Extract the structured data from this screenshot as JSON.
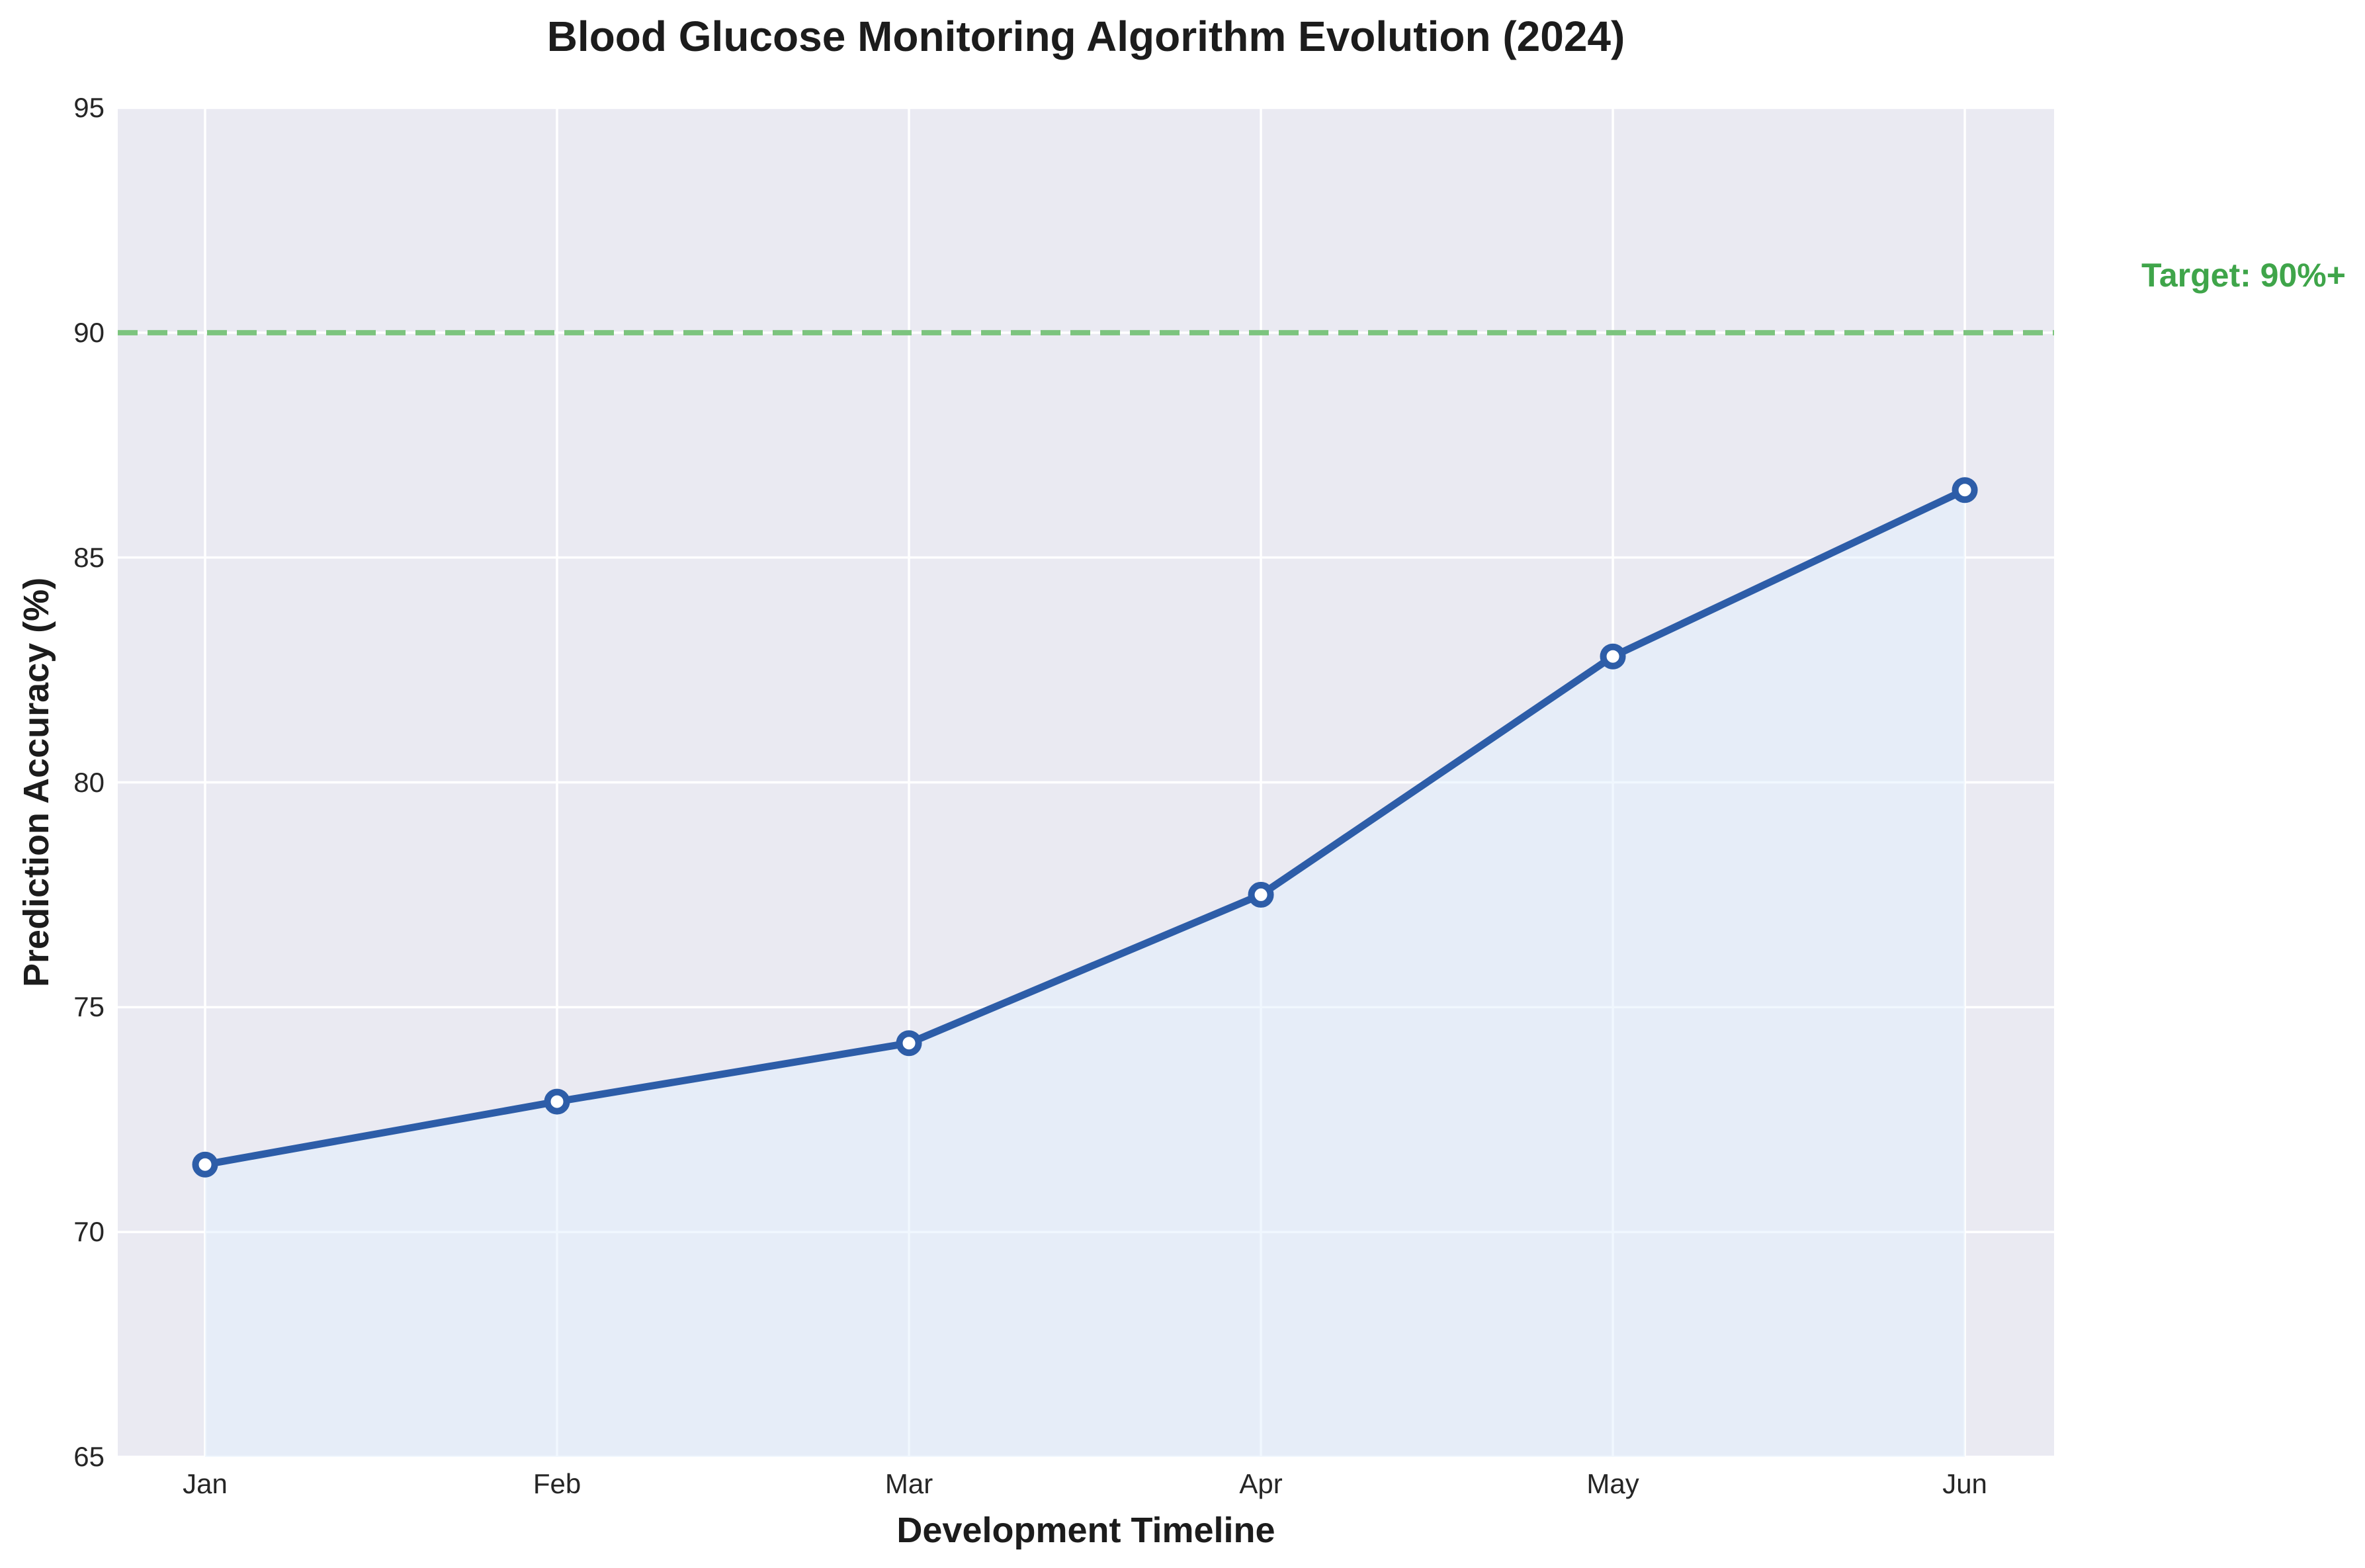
{
  "chart_data": {
    "type": "line",
    "title": "Blood Glucose Monitoring Algorithm Evolution (2024)",
    "xlabel": "Development Timeline",
    "ylabel": "Prediction Accuracy (%)",
    "categories": [
      "Jan",
      "Feb",
      "Mar",
      "Apr",
      "May",
      "Jun"
    ],
    "series": [
      {
        "name": "Prediction Accuracy (%)",
        "values": [
          71.5,
          72.9,
          74.2,
          77.5,
          82.8,
          86.5
        ]
      }
    ],
    "ylim": [
      65,
      95
    ],
    "yticks": [
      65,
      70,
      75,
      80,
      85,
      90,
      95
    ],
    "grid": true,
    "legend": "none",
    "target_line": {
      "value": 90,
      "style": "dashed"
    },
    "annotation": {
      "text": "Target: 90%+"
    },
    "colors": {
      "line": "#2d5da8",
      "marker_fill": "#ffffff",
      "plot_bg": "#eaeaf2",
      "gridline": "#ffffff",
      "target_line": "#7cc47e",
      "annotation_text": "#3fa54a",
      "area_fill": "#e2f0fd"
    }
  }
}
